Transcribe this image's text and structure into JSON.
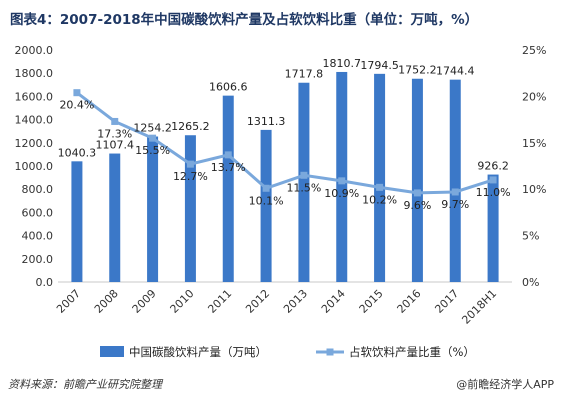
{
  "title": "图表4：2007-2018年中国碳酸饮料产量及占软饮料比重（单位：万吨，%）",
  "source": "资料来源：前瞻产业研究院整理",
  "brand": "@前瞻经济学人APP",
  "colors": {
    "bar": "#3b78c8",
    "line": "#7aa8dc",
    "title": "#1f3864"
  },
  "chart_data": {
    "type": "bar",
    "categories": [
      "2007",
      "2008",
      "2009",
      "2010",
      "2011",
      "2012",
      "2013",
      "2014",
      "2015",
      "2016",
      "2017",
      "2018H1"
    ],
    "series": [
      {
        "name": "中国碳酸饮料产量（万吨）",
        "type": "bar",
        "axis": "left",
        "values": [
          1040.3,
          1107.4,
          1254.2,
          1265.2,
          1606.6,
          1311.3,
          1717.8,
          1810.7,
          1794.5,
          1752.2,
          1744.4,
          926.2
        ],
        "labels": [
          "1040.3",
          "1107.4",
          "1254.2",
          "1265.2",
          "1606.6",
          "1311.3",
          "1717.8",
          "1810.7",
          "1794.5",
          "1752.2",
          "1744.4",
          "926.2"
        ]
      },
      {
        "name": "占软饮料产量比重（%）",
        "type": "line",
        "axis": "right",
        "values": [
          20.4,
          17.3,
          15.5,
          12.7,
          13.7,
          10.1,
          11.5,
          10.9,
          10.2,
          9.6,
          9.7,
          11.0
        ],
        "labels": [
          "20.4%",
          "17.3%",
          "15.5%",
          "12.7%",
          "13.7%",
          "10.1%",
          "11.5%",
          "10.9%",
          "10.2%",
          "9.6%",
          "9.7%",
          "11.0%"
        ]
      }
    ],
    "y_left": {
      "ylim": [
        0,
        2000
      ],
      "ticks": [
        "0.0",
        "200.0",
        "400.0",
        "600.0",
        "800.0",
        "1000.0",
        "1200.0",
        "1400.0",
        "1600.0",
        "1800.0",
        "2000.0"
      ]
    },
    "y_right": {
      "ylim": [
        0,
        25
      ],
      "ticks": [
        "0%",
        "5%",
        "10%",
        "15%",
        "20%",
        "25%"
      ]
    },
    "legend_position": "bottom",
    "grid": false
  }
}
